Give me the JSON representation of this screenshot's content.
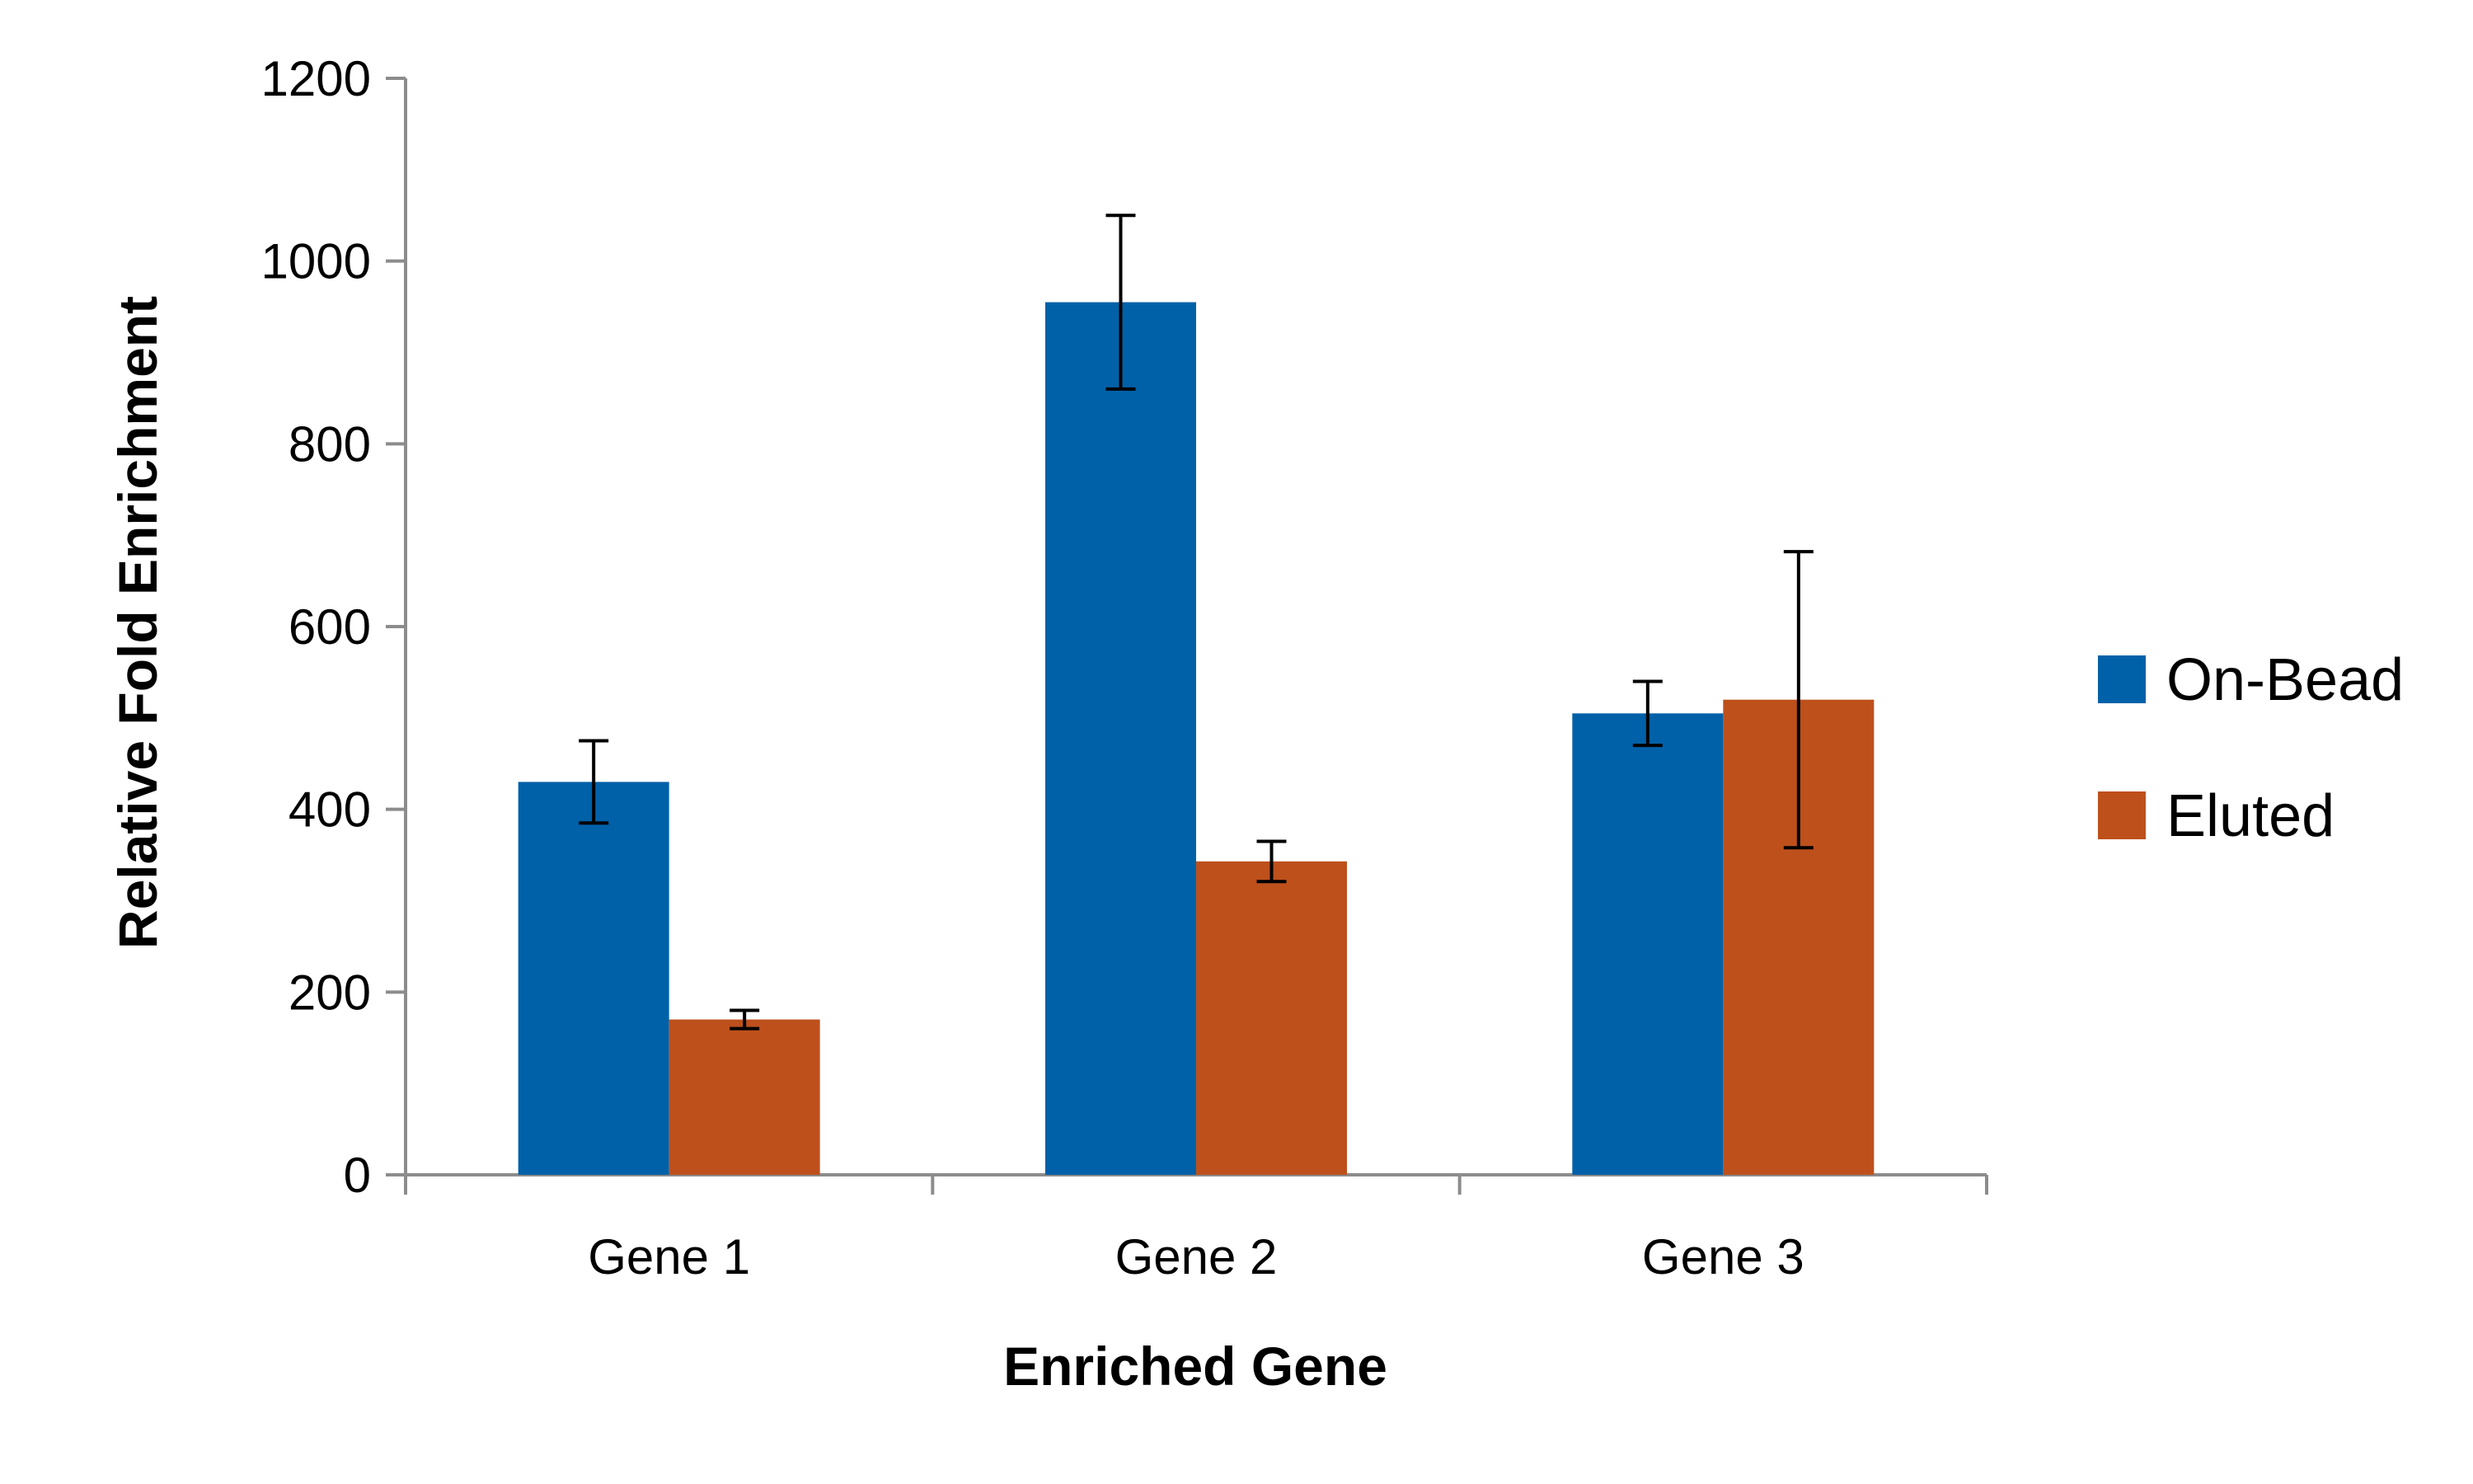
{
  "chart_data": {
    "type": "bar",
    "title": "",
    "xlabel": "Enriched Gene",
    "ylabel": "Relative Fold Enrichment",
    "categories": [
      "Gene 1",
      "Gene 2",
      "Gene 3"
    ],
    "ylim": [
      0,
      1200
    ],
    "yticks": [
      0,
      200,
      400,
      600,
      800,
      1000,
      1200
    ],
    "grid": false,
    "legend_position": "right",
    "series": [
      {
        "name": "On-Bead",
        "color": "#0061A8",
        "values": [
          430,
          955,
          505
        ],
        "error": [
          45,
          95,
          35
        ]
      },
      {
        "name": "Eluted",
        "color": "#BE501C",
        "values": [
          170,
          343,
          520
        ],
        "error": [
          10,
          22,
          162
        ]
      }
    ]
  }
}
